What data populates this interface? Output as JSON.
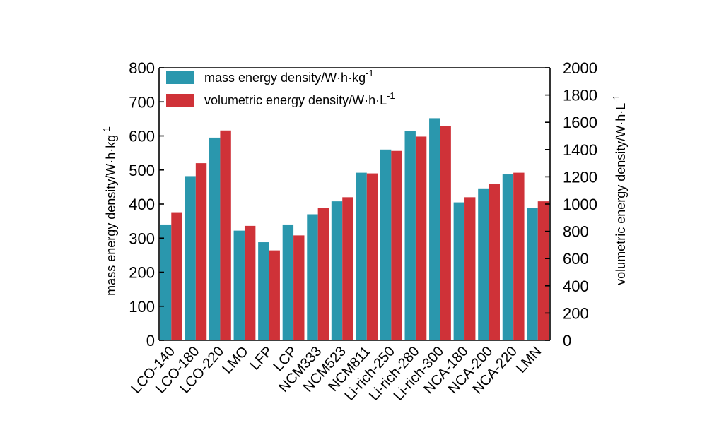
{
  "chart_data": {
    "type": "bar",
    "categories": [
      "LCO-140",
      "LCO-180",
      "LCO-220",
      "LMO",
      "LFP",
      "LCP",
      "NCM333",
      "NCM523",
      "NCM811",
      "Li-rich-250",
      "Li-rich-280",
      "Li-rich-300",
      "NCA-180",
      "NCA-200",
      "NCA-220",
      "LMN"
    ],
    "series": [
      {
        "name": "mass energy density/W·h·kg",
        "name_superscript": "-1",
        "axis": "left",
        "color": "#2a97ad",
        "values": [
          340,
          482,
          595,
          322,
          288,
          340,
          370,
          408,
          492,
          560,
          615,
          652,
          405,
          446,
          487,
          388
        ]
      },
      {
        "name": "volumetric energy density/W·h·L",
        "name_superscript": "-1",
        "axis": "right",
        "color": "#cf3238",
        "values": [
          940,
          1300,
          1540,
          840,
          660,
          770,
          970,
          1050,
          1225,
          1390,
          1495,
          1575,
          1050,
          1145,
          1230,
          1020
        ]
      }
    ],
    "ylabel": "mass energy density/W·h·kg",
    "ylabel_superscript": "-1",
    "ylim": [
      0,
      800
    ],
    "yticks": [
      0,
      100,
      200,
      300,
      400,
      500,
      600,
      700,
      800
    ],
    "y2label": "volumetric energy density/W·h·L",
    "y2label_superscript": "-1",
    "y2lim": [
      0,
      2000
    ],
    "y2ticks": [
      0,
      200,
      400,
      600,
      800,
      1000,
      1200,
      1400,
      1600,
      1800,
      2000
    ],
    "grid": false,
    "legend_position": "top-left"
  }
}
